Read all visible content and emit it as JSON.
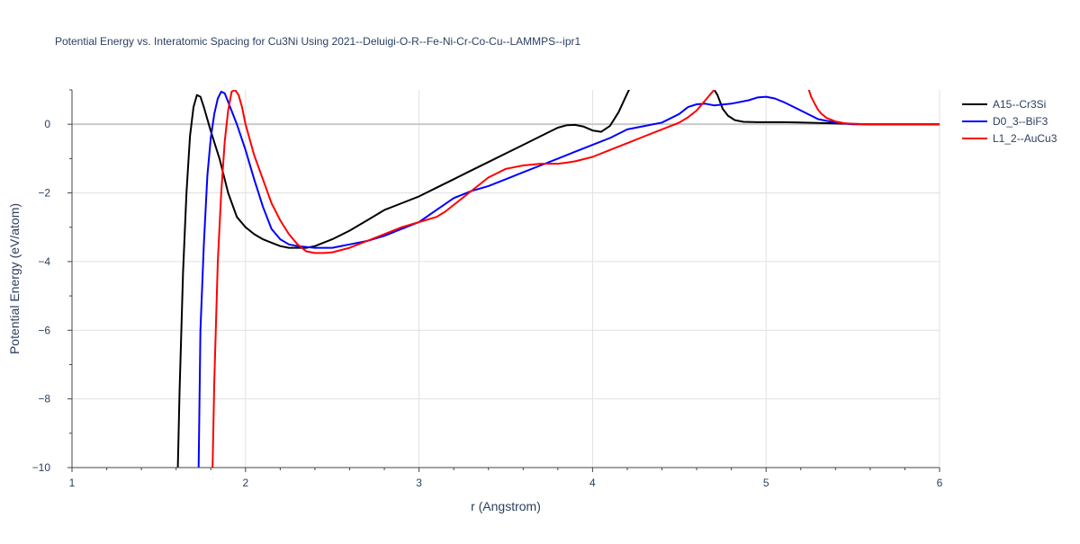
{
  "chart_data": {
    "type": "line",
    "title": "Potential Energy vs. Interatomic Spacing for Cu3Ni Using 2021--Deluigi-O-R--Fe-Ni-Cr-Co-Cu--LAMMPS--ipr1",
    "xlabel": "r (Angstrom)",
    "ylabel": "Potential Energy (eV/atom)",
    "xlim": [
      1,
      6
    ],
    "ylim": [
      -10,
      1
    ],
    "xticks": [
      1,
      2,
      3,
      4,
      5,
      6
    ],
    "xtick_labels": [
      "1",
      "2",
      "3",
      "4",
      "5",
      "6"
    ],
    "yticks": [
      -10,
      -8,
      -6,
      -4,
      -2,
      0
    ],
    "ytick_labels": [
      "−10",
      "−8",
      "−6",
      "−4",
      "−2",
      "0"
    ],
    "grid": true,
    "legend_position": "top-right",
    "series": [
      {
        "name": "A15--Cr3Si",
        "color": "#000000",
        "x": [
          1.61,
          1.62,
          1.64,
          1.66,
          1.68,
          1.7,
          1.72,
          1.74,
          1.76,
          1.8,
          1.85,
          1.9,
          1.95,
          2.0,
          2.05,
          2.1,
          2.15,
          2.2,
          2.25,
          2.3,
          2.35,
          2.4,
          2.5,
          2.6,
          2.7,
          2.8,
          2.9,
          3.0,
          3.1,
          3.2,
          3.3,
          3.4,
          3.5,
          3.6,
          3.7,
          3.8,
          3.85,
          3.9,
          3.95,
          4.0,
          4.05,
          4.1,
          4.15,
          4.2,
          4.22
        ],
        "y": [
          -10,
          -7.8,
          -4.3,
          -2.0,
          -0.35,
          0.5,
          0.85,
          0.8,
          0.5,
          -0.2,
          -1.0,
          -2.0,
          -2.7,
          -3.0,
          -3.2,
          -3.35,
          -3.45,
          -3.55,
          -3.6,
          -3.6,
          -3.6,
          -3.55,
          -3.35,
          -3.1,
          -2.8,
          -2.5,
          -2.3,
          -2.1,
          -1.85,
          -1.6,
          -1.35,
          -1.1,
          -0.85,
          -0.6,
          -0.35,
          -0.1,
          -0.03,
          -0.02,
          -0.07,
          -0.18,
          -0.22,
          -0.05,
          0.35,
          0.9,
          1.1
        ]
      },
      {
        "name": "A15--Cr3Si",
        "color": "#000000",
        "x": [
          4.69,
          4.72,
          4.75,
          4.78,
          4.82,
          4.87,
          4.95,
          5.1,
          5.3,
          5.5,
          5.6,
          5.8,
          6.0
        ],
        "y": [
          1.1,
          0.85,
          0.45,
          0.25,
          0.12,
          0.07,
          0.06,
          0.06,
          0.04,
          0.01,
          0.0,
          0.0,
          0.0
        ]
      },
      {
        "name": "D0_3--BiF3",
        "color": "#0000ff",
        "x": [
          1.73,
          1.74,
          1.76,
          1.78,
          1.8,
          1.82,
          1.84,
          1.86,
          1.88,
          1.9,
          1.95,
          2.0,
          2.05,
          2.1,
          2.15,
          2.2,
          2.25,
          2.3,
          2.4,
          2.5,
          2.6,
          2.7,
          2.8,
          2.9,
          3.0,
          3.1,
          3.2,
          3.3,
          3.4,
          3.5,
          3.6,
          3.7,
          3.8,
          3.9,
          4.0,
          4.1,
          4.2,
          4.3,
          4.4,
          4.5,
          4.55,
          4.6,
          4.65,
          4.7,
          4.8,
          4.9,
          4.95,
          5.0,
          5.05,
          5.1,
          5.2,
          5.3,
          5.4,
          5.5,
          5.6,
          5.8,
          6.0
        ],
        "y": [
          -10,
          -6.0,
          -3.5,
          -1.5,
          -0.4,
          0.3,
          0.75,
          0.95,
          0.9,
          0.65,
          0.0,
          -0.75,
          -1.6,
          -2.4,
          -3.05,
          -3.35,
          -3.5,
          -3.55,
          -3.6,
          -3.6,
          -3.5,
          -3.4,
          -3.25,
          -3.05,
          -2.85,
          -2.5,
          -2.15,
          -1.95,
          -1.8,
          -1.6,
          -1.4,
          -1.2,
          -1.0,
          -0.8,
          -0.6,
          -0.4,
          -0.15,
          -0.05,
          0.05,
          0.3,
          0.5,
          0.58,
          0.6,
          0.55,
          0.6,
          0.7,
          0.78,
          0.8,
          0.75,
          0.65,
          0.4,
          0.15,
          0.05,
          0.0,
          0.0,
          0.0,
          0.0
        ]
      },
      {
        "name": "L1_2--AuCu3",
        "color": "#ff0000",
        "x": [
          1.81,
          1.82,
          1.84,
          1.86,
          1.88,
          1.9,
          1.92,
          1.94,
          1.96,
          1.98,
          2.0,
          2.05,
          2.1,
          2.15,
          2.2,
          2.25,
          2.3,
          2.35,
          2.4,
          2.45,
          2.5,
          2.6,
          2.7,
          2.8,
          2.9,
          3.0,
          3.1,
          3.15,
          3.2,
          3.3,
          3.4,
          3.5,
          3.6,
          3.7,
          3.8,
          3.85,
          3.9,
          4.0,
          4.1,
          4.2,
          4.3,
          4.4,
          4.5,
          4.55,
          4.6,
          4.65,
          4.7,
          4.73
        ],
        "y": [
          -10,
          -7.5,
          -4.0,
          -2.0,
          -0.5,
          0.4,
          0.95,
          1.0,
          0.85,
          0.5,
          0.0,
          -0.9,
          -1.6,
          -2.3,
          -2.8,
          -3.2,
          -3.5,
          -3.7,
          -3.75,
          -3.75,
          -3.73,
          -3.6,
          -3.4,
          -3.2,
          -3.0,
          -2.85,
          -2.7,
          -2.55,
          -2.35,
          -1.95,
          -1.55,
          -1.3,
          -1.2,
          -1.15,
          -1.15,
          -1.12,
          -1.08,
          -0.95,
          -0.75,
          -0.55,
          -0.35,
          -0.15,
          0.05,
          0.2,
          0.4,
          0.7,
          1.0,
          1.1
        ]
      },
      {
        "name": "L1_2--AuCu3",
        "color": "#ff0000",
        "x": [
          5.24,
          5.26,
          5.28,
          5.3,
          5.32,
          5.35,
          5.4,
          5.45,
          5.5,
          5.6,
          5.8,
          6.0
        ],
        "y": [
          1.1,
          0.8,
          0.6,
          0.42,
          0.3,
          0.18,
          0.08,
          0.03,
          0.01,
          0.0,
          0.0,
          0.0
        ]
      }
    ],
    "legend": [
      {
        "name": "A15--Cr3Si",
        "color": "#000000"
      },
      {
        "name": "D0_3--BiF3",
        "color": "#0000ff"
      },
      {
        "name": "L1_2--AuCu3",
        "color": "#ff0000"
      }
    ]
  }
}
